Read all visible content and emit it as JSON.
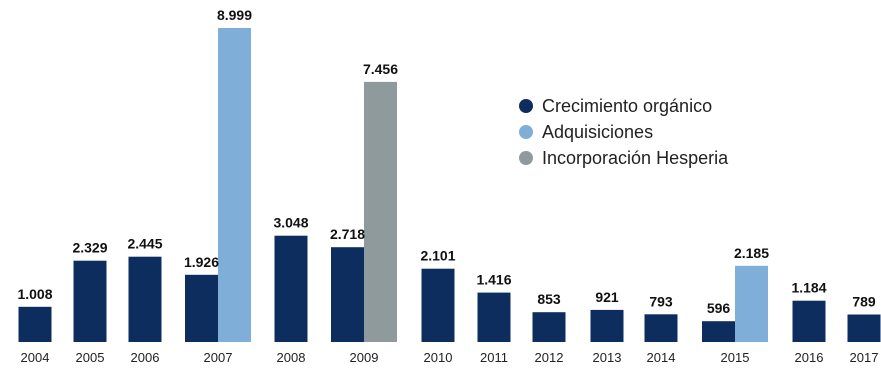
{
  "chart_data": {
    "type": "bar",
    "title": "",
    "xlabel": "",
    "ylabel": "",
    "ylim": [
      0,
      9000
    ],
    "grid": false,
    "legend_position": "top-right",
    "categories": [
      "2004",
      "2005",
      "2006",
      "2007",
      "2008",
      "2009",
      "2010",
      "2011",
      "2012",
      "2013",
      "2014",
      "2015",
      "2016",
      "2017"
    ],
    "series": [
      {
        "name": "Crecimiento orgánico",
        "color": "#0d2d5e",
        "values": [
          1008,
          2329,
          2445,
          1926,
          3048,
          2718,
          2101,
          1416,
          853,
          921,
          793,
          596,
          1184,
          789
        ],
        "labels": [
          "1.008",
          "2.329",
          "2.445",
          "1.926",
          "3.048",
          "2.718",
          "2.101",
          "1.416",
          "853",
          "921",
          "793",
          "596",
          "1.184",
          "789"
        ]
      },
      {
        "name": "Adquisiciones",
        "color": "#7fafd8",
        "values": [
          null,
          null,
          null,
          8999,
          null,
          null,
          null,
          null,
          null,
          null,
          null,
          2185,
          null,
          null
        ],
        "labels": [
          null,
          null,
          null,
          "8.999",
          null,
          null,
          null,
          null,
          null,
          null,
          null,
          "2.185",
          null,
          null
        ]
      },
      {
        "name": "Incorporación Hesperia",
        "color": "#8e9a9c",
        "values": [
          null,
          null,
          null,
          null,
          null,
          7456,
          null,
          null,
          null,
          null,
          null,
          null,
          null,
          null
        ],
        "labels": [
          null,
          null,
          null,
          null,
          null,
          "7.456",
          null,
          null,
          null,
          null,
          null,
          null,
          null,
          null
        ]
      }
    ]
  }
}
